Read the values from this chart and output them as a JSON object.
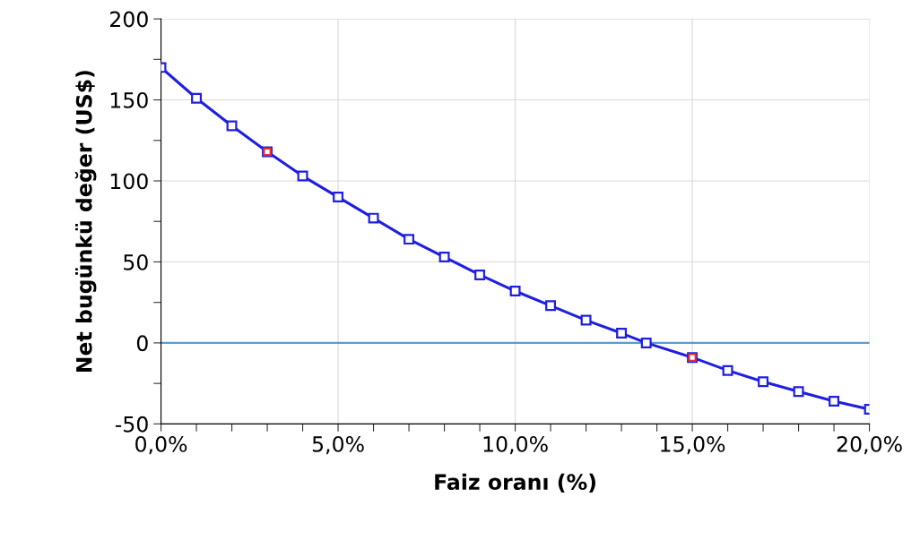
{
  "chart_data": {
    "type": "line",
    "xlabel": "Faiz oranı (%)",
    "ylabel": "Net bugünkü değer (US$)",
    "series": [
      {
        "color": "#1f1fe0",
        "marker": "square",
        "x": [
          0,
          1,
          2,
          3,
          4,
          5,
          6,
          7,
          8,
          9,
          10,
          11,
          12,
          13,
          13.7,
          15,
          16,
          17,
          18,
          19,
          20
        ],
        "values": [
          170,
          151,
          134,
          118,
          103,
          90,
          77,
          64,
          53,
          42,
          32,
          23,
          14,
          6,
          0,
          -9,
          -17,
          -24,
          -30,
          -36,
          -41
        ]
      },
      {
        "type": "scatter",
        "color": "#e03030",
        "marker": "square",
        "x": [
          3,
          15
        ],
        "values": [
          118,
          -9
        ]
      }
    ],
    "xlim": [
      0,
      20
    ],
    "xticks": [
      {
        "value": 0,
        "label": "0,0%"
      },
      {
        "value": 1,
        "label": null
      },
      {
        "value": 2,
        "label": null
      },
      {
        "value": 3,
        "label": null
      },
      {
        "value": 4,
        "label": null
      },
      {
        "value": 5,
        "label": "5,0%"
      },
      {
        "value": 6,
        "label": null
      },
      {
        "value": 7,
        "label": null
      },
      {
        "value": 8,
        "label": null
      },
      {
        "value": 9,
        "label": null
      },
      {
        "value": 10,
        "label": "10,0%"
      },
      {
        "value": 11,
        "label": null
      },
      {
        "value": 12,
        "label": null
      },
      {
        "value": 13,
        "label": null
      },
      {
        "value": 14,
        "label": null
      },
      {
        "value": 15,
        "label": "15,0%"
      },
      {
        "value": 16,
        "label": null
      },
      {
        "value": 17,
        "label": null
      },
      {
        "value": 18,
        "label": null
      },
      {
        "value": 19,
        "label": null
      },
      {
        "value": 20,
        "label": "20,0%"
      }
    ],
    "ylim": [
      -50,
      200
    ],
    "yticks": [
      -50,
      {
        "value": -25,
        "label": null
      },
      0,
      {
        "value": 25,
        "label": null
      },
      50,
      {
        "value": 75,
        "label": null
      },
      100,
      {
        "value": 125,
        "label": null
      },
      150,
      {
        "value": 175,
        "label": null
      },
      200
    ],
    "ref_lines": [
      {
        "axis": "y",
        "value": 0,
        "color": "#5b9bd5"
      }
    ],
    "grid": true
  }
}
